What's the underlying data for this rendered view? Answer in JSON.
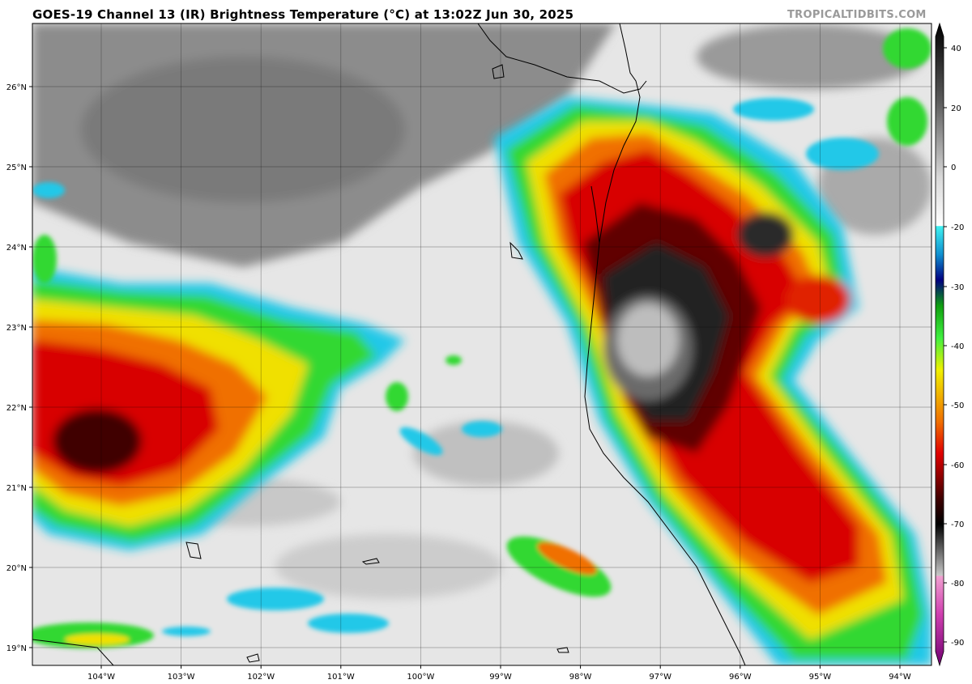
{
  "title": "GOES-19 Channel 13 (IR) Brightness Temperature (°C) at 13:02Z Jun 30, 2025",
  "credit": "TROPICALTIDBITS.COM",
  "map": {
    "lon_labels": [
      "104°W",
      "103°W",
      "102°W",
      "101°W",
      "100°W",
      "99°W",
      "98°W",
      "97°W",
      "96°W",
      "95°W",
      "94°W"
    ],
    "lat_labels": [
      "26°N",
      "25°N",
      "24°N",
      "23°N",
      "22°N",
      "21°N",
      "20°N",
      "19°N"
    ],
    "colors": {
      "land_outline": "#000000",
      "warm_gray": "#8a8a8a",
      "cloud_white": "#ececec",
      "cold_cyan": "#22c8e8",
      "green": "#30d830",
      "yellow": "#f0f000",
      "orange": "#f08000",
      "red": "#d00000",
      "dark_red": "#400000"
    }
  },
  "colorbar": {
    "ticks": [
      "40",
      "20",
      "0",
      "-20",
      "-30",
      "-40",
      "-50",
      "-60",
      "-70",
      "-80",
      "-90"
    ]
  }
}
